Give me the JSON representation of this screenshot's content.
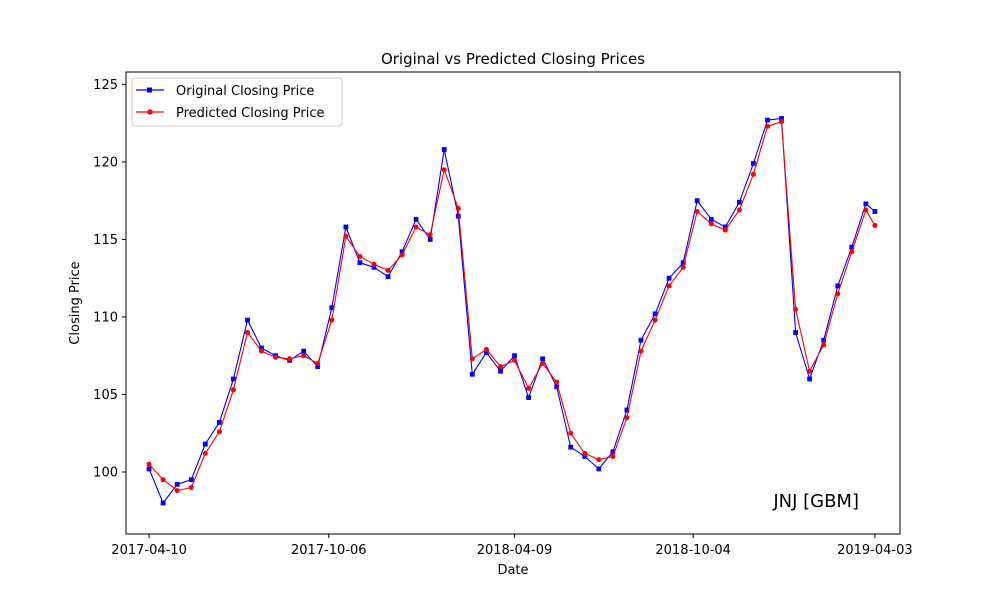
{
  "chart_data": {
    "type": "line",
    "title": "Original vs Predicted Closing Prices",
    "xlabel": "Date",
    "ylabel": "Closing Price",
    "annotation": "JNJ [GBM]",
    "x_ticks": [
      "2017-04-10",
      "2017-10-06",
      "2018-04-09",
      "2018-10-04",
      "2019-04-03"
    ],
    "y_ticks": [
      100,
      105,
      110,
      115,
      120,
      125
    ],
    "xlim": [
      "2017-03-18",
      "2019-04-28"
    ],
    "ylim": [
      96.0,
      125.8
    ],
    "grid": false,
    "legend_position": "top-left",
    "x": [
      "2017-04-10",
      "2017-04-24",
      "2017-05-08",
      "2017-05-22",
      "2017-06-05",
      "2017-06-19",
      "2017-07-03",
      "2017-07-17",
      "2017-07-31",
      "2017-08-14",
      "2017-08-28",
      "2017-09-11",
      "2017-09-25",
      "2017-10-09",
      "2017-10-23",
      "2017-11-06",
      "2017-11-20",
      "2017-12-04",
      "2017-12-18",
      "2018-01-01",
      "2018-01-15",
      "2018-01-29",
      "2018-02-12",
      "2018-02-26",
      "2018-03-12",
      "2018-03-26",
      "2018-04-09",
      "2018-04-23",
      "2018-05-07",
      "2018-05-21",
      "2018-06-04",
      "2018-06-18",
      "2018-07-02",
      "2018-07-16",
      "2018-07-30",
      "2018-08-13",
      "2018-08-27",
      "2018-09-10",
      "2018-09-24",
      "2018-10-08",
      "2018-10-22",
      "2018-11-05",
      "2018-11-19",
      "2018-12-03",
      "2018-12-17",
      "2018-12-31",
      "2019-01-14",
      "2019-01-28",
      "2019-02-11",
      "2019-02-25",
      "2019-03-11",
      "2019-03-25",
      "2019-04-03"
    ],
    "series": [
      {
        "name": "Original Closing Price",
        "color": "#0000ff",
        "marker": "square",
        "values": [
          100.2,
          98.0,
          99.2,
          99.5,
          101.8,
          103.2,
          106.0,
          109.8,
          108.0,
          107.5,
          107.2,
          107.8,
          106.8,
          110.6,
          115.8,
          113.5,
          113.2,
          112.6,
          114.2,
          116.3,
          115.0,
          120.8,
          116.5,
          106.3,
          107.7,
          106.5,
          107.5,
          104.8,
          107.3,
          105.5,
          101.6,
          101.0,
          100.2,
          101.3,
          104.0,
          108.5,
          110.2,
          112.5,
          113.5,
          117.5,
          116.3,
          115.8,
          117.4,
          119.9,
          122.7,
          122.8,
          109.0,
          106.0,
          108.5,
          112.0,
          114.5,
          117.3,
          116.8
        ]
      },
      {
        "name": "Predicted Closing Price",
        "color": "#ff0000",
        "marker": "circle",
        "values": [
          100.5,
          99.5,
          98.8,
          99.0,
          101.2,
          102.6,
          105.3,
          109.0,
          107.8,
          107.4,
          107.3,
          107.5,
          107.0,
          109.8,
          115.2,
          113.9,
          113.4,
          113.0,
          114.0,
          115.8,
          115.3,
          119.5,
          117.0,
          107.3,
          107.9,
          106.8,
          107.2,
          105.4,
          107.0,
          105.8,
          102.5,
          101.2,
          100.8,
          101.0,
          103.5,
          107.8,
          109.8,
          112.0,
          113.2,
          116.8,
          116.0,
          115.6,
          116.9,
          119.2,
          122.3,
          122.6,
          110.5,
          106.5,
          108.2,
          111.5,
          114.2,
          116.9,
          115.9
        ]
      }
    ]
  }
}
